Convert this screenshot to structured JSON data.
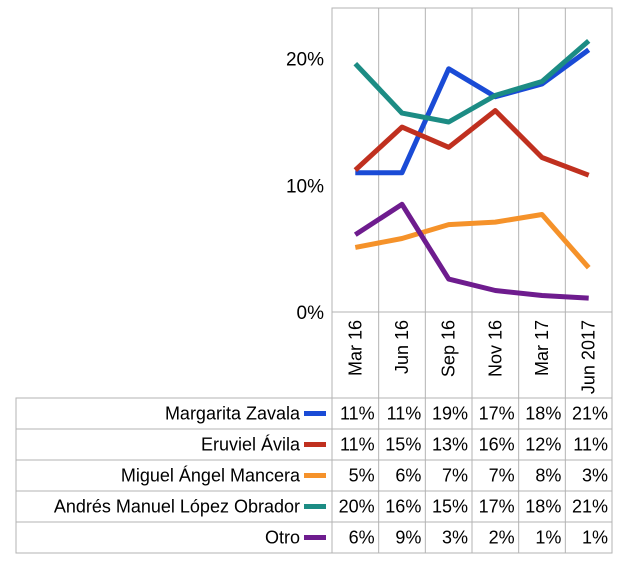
{
  "chart_data": {
    "type": "line",
    "categories": [
      "Mar 16",
      "Jun 16",
      "Sep 16",
      "Nov 16",
      "Mar 17",
      "Jun 2017"
    ],
    "ylim": [
      0,
      24
    ],
    "yticks": [
      "0%",
      "10%",
      "20%"
    ],
    "ytick_values": [
      0,
      10,
      20
    ],
    "grid": "vertical",
    "legend": "data-table-below",
    "series": [
      {
        "name": "Margarita Zavala",
        "color": "#1a4bd6",
        "values": [
          11,
          11,
          19,
          17,
          18,
          21
        ],
        "plot_values": [
          11.0,
          11.0,
          19.2,
          17.0,
          18.0,
          20.7
        ],
        "labels": [
          "11%",
          "11%",
          "19%",
          "17%",
          "18%",
          "21%"
        ]
      },
      {
        "name": "Eruviel Ávila",
        "color": "#c0301f",
        "values": [
          11,
          15,
          13,
          16,
          12,
          11
        ],
        "plot_values": [
          11.2,
          14.6,
          13.0,
          15.9,
          12.2,
          10.8
        ],
        "labels": [
          "11%",
          "15%",
          "13%",
          "16%",
          "12%",
          "11%"
        ]
      },
      {
        "name": "Miguel Ángel Mancera",
        "color": "#f5922a",
        "values": [
          5,
          6,
          7,
          7,
          8,
          3
        ],
        "plot_values": [
          5.1,
          5.8,
          6.9,
          7.1,
          7.7,
          3.5
        ],
        "labels": [
          "5%",
          "6%",
          "7%",
          "7%",
          "8%",
          "3%"
        ]
      },
      {
        "name": "Andrés Manuel López Obrador",
        "color": "#1c8c84",
        "values": [
          20,
          16,
          15,
          17,
          18,
          21
        ],
        "plot_values": [
          19.6,
          15.7,
          15.0,
          17.1,
          18.2,
          21.4
        ],
        "labels": [
          "20%",
          "16%",
          "15%",
          "17%",
          "18%",
          "21%"
        ]
      },
      {
        "name": "Otro",
        "color": "#6e1c8e",
        "values": [
          6,
          9,
          3,
          2,
          1,
          1
        ],
        "plot_values": [
          6.1,
          8.5,
          2.6,
          1.7,
          1.3,
          1.1
        ],
        "labels": [
          "6%",
          "9%",
          "3%",
          "2%",
          "1%",
          "1%"
        ]
      }
    ]
  }
}
